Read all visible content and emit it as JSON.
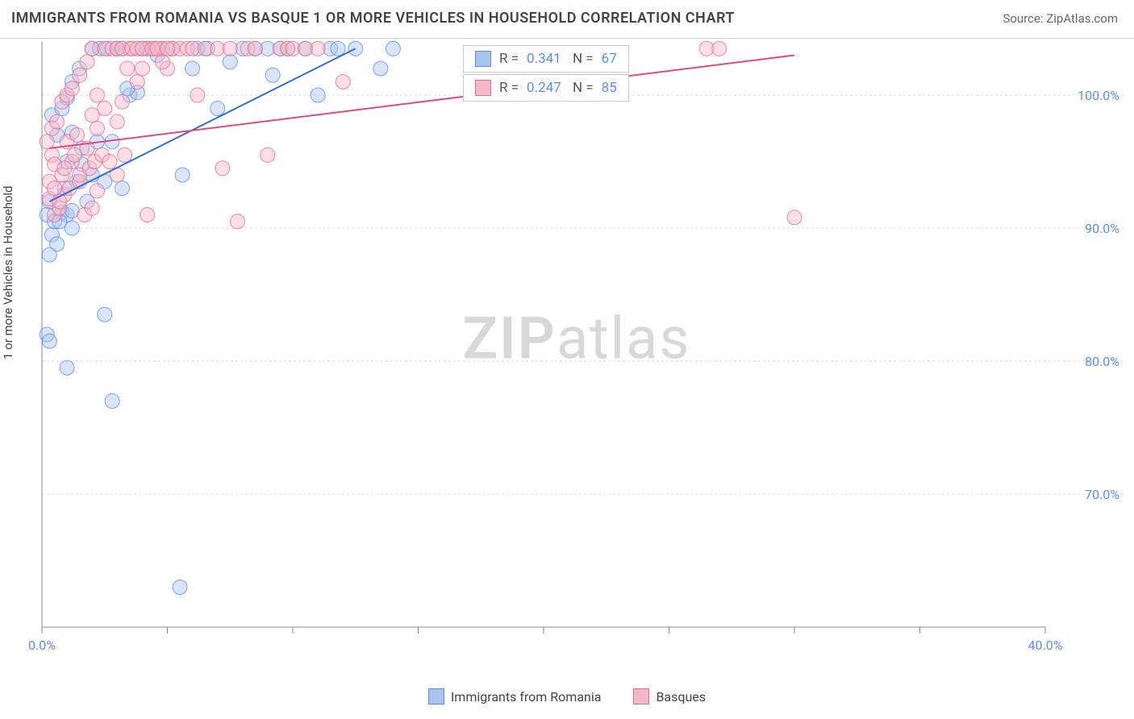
{
  "header": {
    "title": "IMMIGRANTS FROM ROMANIA VS BASQUE 1 OR MORE VEHICLES IN HOUSEHOLD CORRELATION CHART",
    "source_prefix": "Source: ",
    "source_name": "ZipAtlas.com"
  },
  "chart": {
    "type": "scatter",
    "ylabel": "1 or more Vehicles in Household",
    "xlim": [
      0,
      40
    ],
    "ylim": [
      60,
      104
    ],
    "xtick_step": 5,
    "xtick_labels": {
      "0": "0.0%",
      "40": "40.0%"
    },
    "ytick_labels": {
      "70": "70.0%",
      "80": "80.0%",
      "90": "90.0%",
      "100": "100.0%"
    },
    "background_color": "#ffffff",
    "grid_color": "#d9d9d9",
    "marker_radius": 9,
    "marker_opacity": 0.45,
    "watermark": {
      "bold": "ZIP",
      "rest": "atlas"
    },
    "series": [
      {
        "key": "romania",
        "label": "Immigrants from Romania",
        "color_fill": "#a8c5f0",
        "color_stroke": "#5b8def",
        "trend": {
          "x1": 0.3,
          "y1": 92.0,
          "x2": 12.5,
          "y2": 103.5,
          "color": "#2e6fd9",
          "width": 2
        },
        "stats": {
          "R": "0.341",
          "N": "67"
        },
        "points": [
          [
            0.3,
            92.0
          ],
          [
            0.2,
            91.0
          ],
          [
            0.4,
            89.5
          ],
          [
            0.6,
            88.8
          ],
          [
            0.3,
            88.0
          ],
          [
            0.5,
            90.5
          ],
          [
            0.8,
            91.2
          ],
          [
            1.0,
            91.0
          ],
          [
            1.2,
            90.0
          ],
          [
            0.2,
            82.0
          ],
          [
            0.3,
            81.5
          ],
          [
            1.0,
            79.5
          ],
          [
            2.5,
            83.5
          ],
          [
            2.8,
            77.0
          ],
          [
            5.5,
            63.0
          ],
          [
            1.6,
            94.8
          ],
          [
            1.0,
            95.0
          ],
          [
            2.0,
            94.0
          ],
          [
            2.2,
            96.5
          ],
          [
            2.5,
            93.5
          ],
          [
            2.8,
            96.5
          ],
          [
            3.2,
            93.0
          ],
          [
            3.5,
            100.0
          ],
          [
            3.8,
            100.2
          ],
          [
            4.0,
            103.5
          ],
          [
            4.2,
            103.5
          ],
          [
            4.6,
            103.0
          ],
          [
            4.8,
            103.5
          ],
          [
            5.2,
            103.5
          ],
          [
            5.6,
            94.0
          ],
          [
            6.0,
            102.0
          ],
          [
            6.2,
            103.5
          ],
          [
            6.6,
            103.5
          ],
          [
            7.0,
            99.0
          ],
          [
            7.5,
            102.5
          ],
          [
            8.0,
            103.5
          ],
          [
            8.5,
            103.5
          ],
          [
            9.0,
            103.5
          ],
          [
            9.2,
            101.5
          ],
          [
            9.5,
            103.5
          ],
          [
            9.8,
            103.5
          ],
          [
            10.5,
            103.5
          ],
          [
            11.0,
            100.0
          ],
          [
            11.5,
            103.5
          ],
          [
            11.8,
            103.5
          ],
          [
            12.5,
            103.5
          ],
          [
            13.5,
            102.0
          ],
          [
            14.0,
            103.5
          ],
          [
            0.7,
            90.5
          ],
          [
            1.2,
            91.3
          ],
          [
            0.9,
            93.0
          ],
          [
            1.4,
            93.5
          ],
          [
            1.8,
            92.0
          ],
          [
            1.6,
            96.0
          ],
          [
            1.2,
            97.2
          ],
          [
            0.6,
            97.0
          ],
          [
            0.4,
            98.5
          ],
          [
            0.8,
            99.0
          ],
          [
            1.0,
            99.8
          ],
          [
            1.2,
            101.0
          ],
          [
            1.5,
            102.0
          ],
          [
            2.0,
            103.5
          ],
          [
            2.3,
            103.5
          ],
          [
            2.6,
            103.5
          ],
          [
            3.0,
            103.5
          ],
          [
            3.2,
            103.5
          ],
          [
            3.4,
            100.5
          ]
        ]
      },
      {
        "key": "basques",
        "label": "Basques",
        "color_fill": "#f5b8c8",
        "color_stroke": "#e86a8f",
        "trend": {
          "x1": 0.3,
          "y1": 96.0,
          "x2": 30.0,
          "y2": 103.0,
          "color": "#e04a7a",
          "width": 2
        },
        "stats": {
          "R": "0.247",
          "N": "85"
        },
        "points": [
          [
            0.2,
            96.5
          ],
          [
            0.4,
            95.5
          ],
          [
            0.5,
            94.8
          ],
          [
            0.8,
            94.0
          ],
          [
            1.0,
            96.5
          ],
          [
            1.2,
            95.0
          ],
          [
            1.4,
            97.0
          ],
          [
            1.8,
            96.0
          ],
          [
            2.0,
            98.5
          ],
          [
            2.2,
            97.5
          ],
          [
            2.5,
            99.0
          ],
          [
            3.0,
            98.0
          ],
          [
            3.2,
            99.5
          ],
          [
            3.5,
            103.5
          ],
          [
            3.8,
            101.0
          ],
          [
            4.0,
            102.0
          ],
          [
            4.2,
            103.5
          ],
          [
            4.5,
            103.5
          ],
          [
            4.8,
            103.5
          ],
          [
            5.0,
            102.0
          ],
          [
            5.2,
            103.5
          ],
          [
            5.5,
            103.5
          ],
          [
            5.8,
            103.5
          ],
          [
            6.0,
            103.5
          ],
          [
            6.2,
            100.0
          ],
          [
            6.5,
            103.5
          ],
          [
            7.0,
            103.5
          ],
          [
            7.2,
            94.5
          ],
          [
            7.5,
            103.5
          ],
          [
            7.8,
            90.5
          ],
          [
            8.2,
            103.5
          ],
          [
            8.5,
            103.5
          ],
          [
            9.0,
            95.5
          ],
          [
            9.5,
            103.5
          ],
          [
            9.8,
            103.5
          ],
          [
            10.0,
            103.5
          ],
          [
            10.5,
            103.5
          ],
          [
            11.0,
            103.5
          ],
          [
            12.0,
            101.0
          ],
          [
            30.0,
            90.8
          ],
          [
            26.5,
            103.5
          ],
          [
            27.0,
            103.5
          ],
          [
            0.3,
            92.2
          ],
          [
            0.5,
            91.0
          ],
          [
            0.7,
            91.5
          ],
          [
            0.9,
            92.5
          ],
          [
            1.1,
            93.0
          ],
          [
            1.5,
            93.5
          ],
          [
            1.7,
            91.0
          ],
          [
            2.0,
            91.5
          ],
          [
            2.2,
            92.8
          ],
          [
            4.2,
            91.0
          ],
          [
            0.4,
            97.5
          ],
          [
            0.6,
            98.0
          ],
          [
            0.8,
            99.5
          ],
          [
            1.0,
            100.0
          ],
          [
            1.2,
            100.5
          ],
          [
            1.5,
            101.5
          ],
          [
            1.8,
            102.5
          ],
          [
            2.0,
            103.5
          ],
          [
            2.2,
            100.0
          ],
          [
            2.5,
            103.5
          ],
          [
            2.8,
            103.5
          ],
          [
            3.0,
            103.5
          ],
          [
            3.2,
            103.5
          ],
          [
            3.4,
            102.0
          ],
          [
            3.6,
            103.5
          ],
          [
            3.8,
            103.5
          ],
          [
            4.0,
            103.5
          ],
          [
            4.4,
            103.5
          ],
          [
            4.6,
            103.5
          ],
          [
            4.8,
            102.5
          ],
          [
            5.0,
            103.5
          ],
          [
            0.3,
            93.5
          ],
          [
            0.5,
            93.0
          ],
          [
            0.7,
            92.0
          ],
          [
            0.9,
            94.5
          ],
          [
            1.3,
            95.5
          ],
          [
            1.5,
            94.0
          ],
          [
            1.9,
            94.5
          ],
          [
            2.1,
            95.0
          ],
          [
            2.4,
            95.5
          ],
          [
            2.7,
            95.0
          ],
          [
            3.0,
            94.0
          ],
          [
            3.3,
            95.5
          ]
        ]
      }
    ],
    "legend": [
      {
        "label": "Immigrants from Romania",
        "fill": "#a8c5f0",
        "stroke": "#5b8def"
      },
      {
        "label": "Basques",
        "fill": "#f5b8c8",
        "stroke": "#e86a8f"
      }
    ]
  }
}
